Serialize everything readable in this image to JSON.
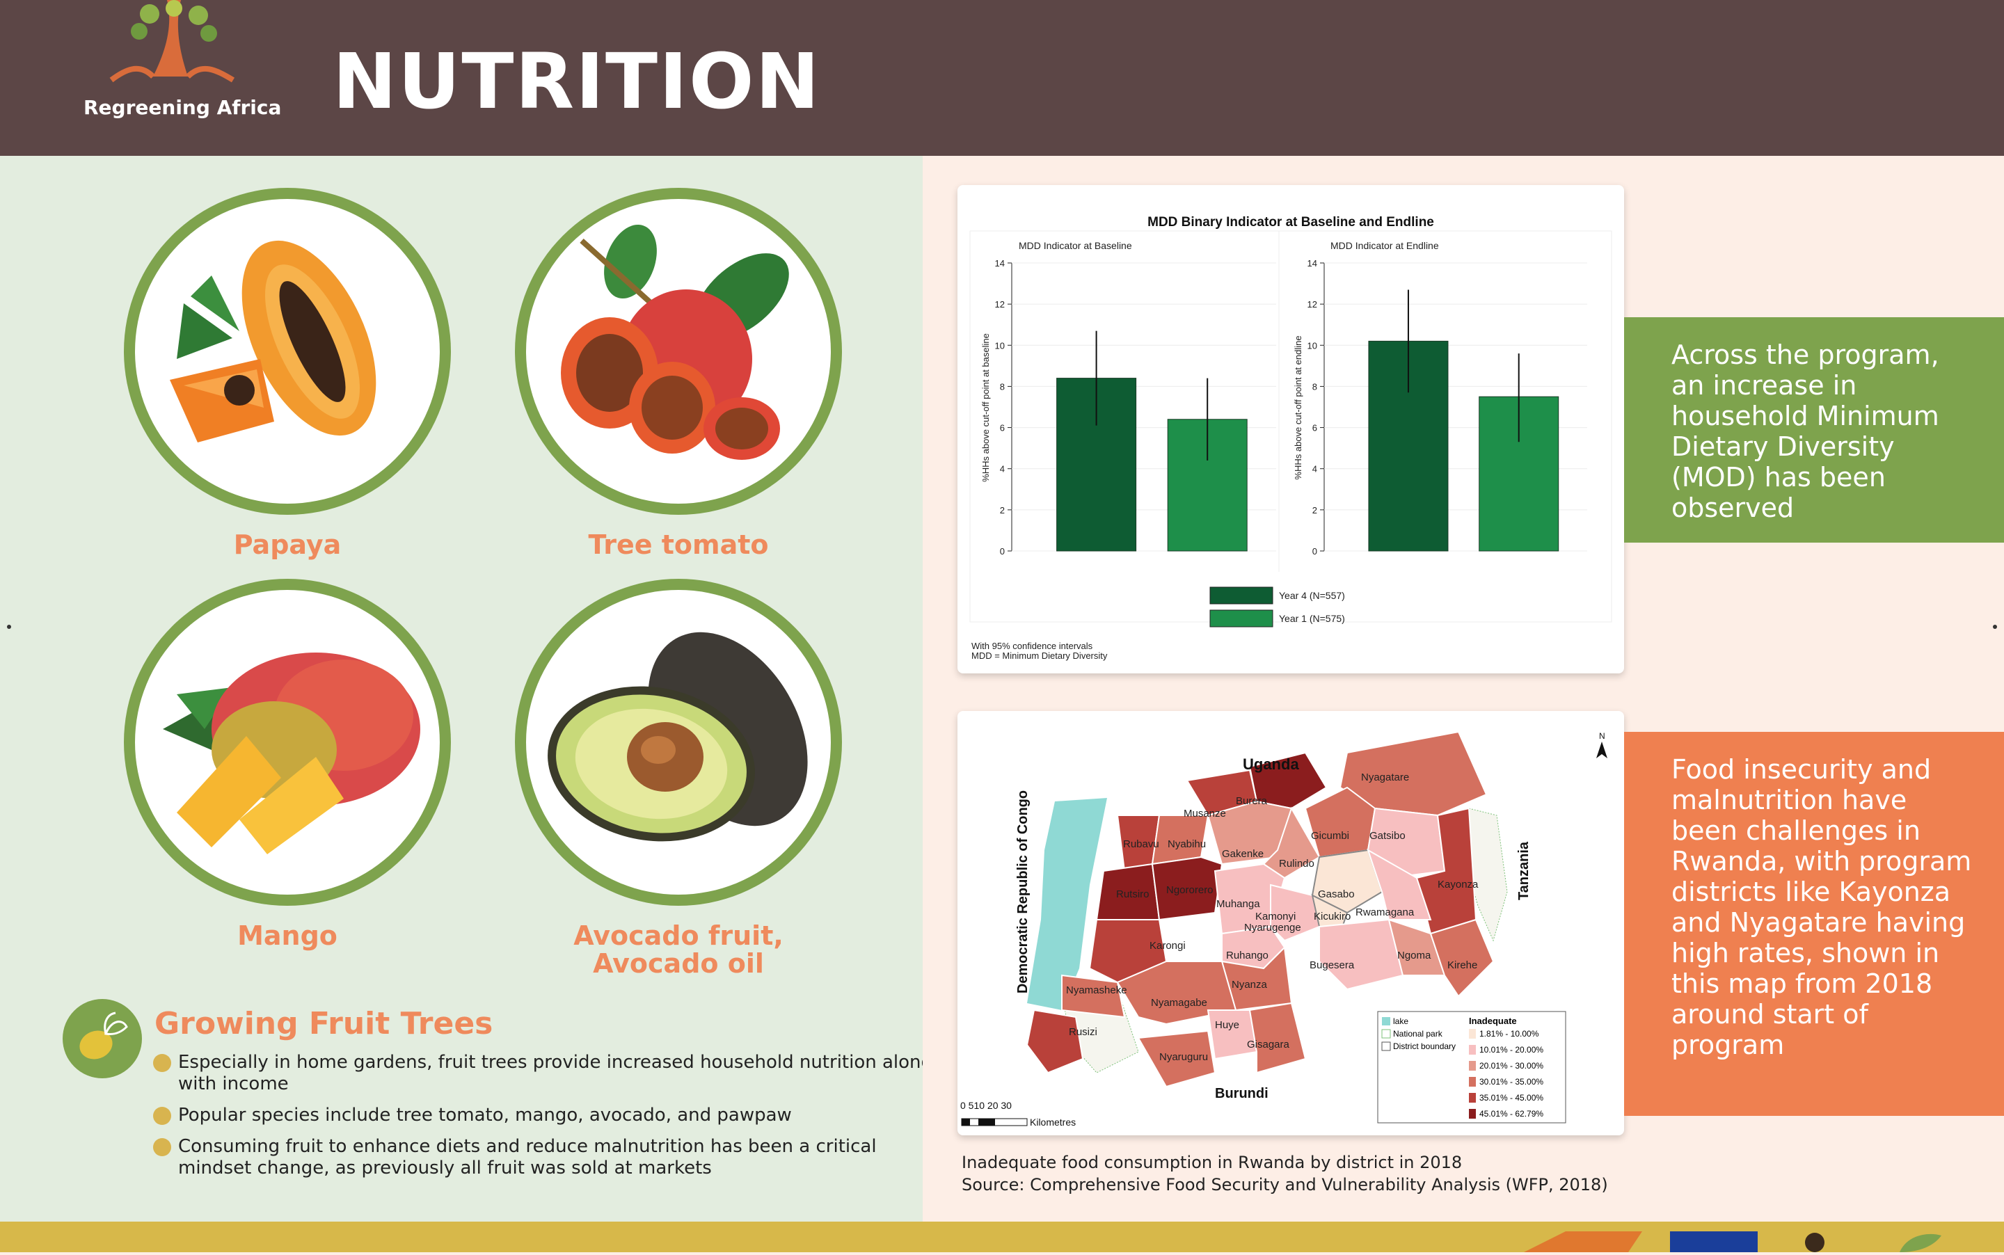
{
  "header": {
    "title": "NUTRITION",
    "logo_text": "Regreening Africa"
  },
  "fruits": [
    {
      "label": "Papaya"
    },
    {
      "label": "Tree tomato"
    },
    {
      "label": "Mango"
    },
    {
      "label_line1": "Avocado fruit,",
      "label_line2": "Avocado oil"
    }
  ],
  "growing": {
    "title": "Growing Fruit Trees",
    "bullets": [
      "Especially in home gardens, fruit trees provide increased household nutrition along with income",
      "Popular species include tree tomato, mango, avocado, and pawpaw",
      "Consuming fruit to enhance diets and reduce malnutrition has been a critical mindset change, as previously all fruit was sold at markets"
    ]
  },
  "chart_data": {
    "type": "bar",
    "title": "MDD Binary Indicator at Baseline and Endline",
    "panels": [
      {
        "subtitle": "MDD Indicator at Baseline",
        "ylabel": "%HHs above cut-off point at baseline"
      },
      {
        "subtitle": "MDD Indicator at Endline",
        "ylabel": "%HHs above cut-off point at endline"
      }
    ],
    "y_ticks": [
      "0",
      "2",
      "4",
      "6",
      "8",
      "10",
      "12",
      "14"
    ],
    "ylim": [
      0,
      14
    ],
    "series": [
      {
        "name": "Year 4 (N=557)",
        "color": "#0e5c33",
        "values": [
          8.4,
          10.2
        ],
        "ci_low": [
          6.1,
          7.7
        ],
        "ci_high": [
          10.7,
          12.7
        ]
      },
      {
        "name": "Year 1 (N=575)",
        "color": "#1e8f4a",
        "values": [
          6.4,
          7.5
        ],
        "ci_low": [
          4.4,
          5.3
        ],
        "ci_high": [
          8.4,
          9.6
        ]
      }
    ],
    "notes": [
      "With 95% confidence intervals",
      "MDD = Minimum Dietary Diversity"
    ]
  },
  "map": {
    "countries": {
      "uganda": "Uganda",
      "drc": "Democratic Republic of Congo",
      "tanzania": "Tanzania",
      "burundi": "Burundi"
    },
    "districts": [
      "Nyagatare",
      "Burera",
      "Musanze",
      "Gicumbi",
      "Gatsibo",
      "Rubavu",
      "Nyabihu",
      "Gakenke",
      "Rulindo",
      "Kayonza",
      "Rutsiro",
      "Ngororero",
      "Gasabo",
      "Muhanga",
      "Kamonyi",
      "Kicukiro",
      "Rwamagana",
      "Nyarugenge",
      "Karongi",
      "Ruhango",
      "Bugesera",
      "Ngoma",
      "Kirehe",
      "Nyanza",
      "Nyamasheke",
      "Nyamagabe",
      "Huye",
      "Rusizi",
      "Gisagara",
      "Nyaruguru"
    ],
    "north": "N",
    "scale_numbers": "0 510  20  30",
    "scale_unit": "Kilometres",
    "legend": {
      "lake": "lake",
      "park": "National park",
      "boundary": "District boundary",
      "title": "Inadequate",
      "ranges": [
        "1.81% - 10.00%",
        "10.01% - 20.00%",
        "20.01% - 30.00%",
        "30.01% - 35.00%",
        "35.01% - 45.00%",
        "45.01% - 62.79%"
      ],
      "colors": [
        "#fbe6d6",
        "#f7bfc0",
        "#e59a8c",
        "#d4705f",
        "#b9413a",
        "#8b1d1e"
      ]
    }
  },
  "callouts": {
    "green": "Across the program, an increase in household Minimum Dietary Diversity (MOD) has been observed",
    "orange": "Food insecurity and malnutrition have been challenges in Rwanda, with program districts like Kayonza and Nyagatare having high rates, shown in this map from 2018 around start of program"
  },
  "caption": {
    "line1": "Inadequate food consumption in Rwanda by district in 2018",
    "line2": "Source: Comprehensive Food Security and Vulnerability Analysis (WFP, 2018)"
  },
  "colors": {
    "header": "#5c4646",
    "green": "#7ea34d",
    "orange": "#ef8050",
    "footer": "#d7b84a"
  }
}
